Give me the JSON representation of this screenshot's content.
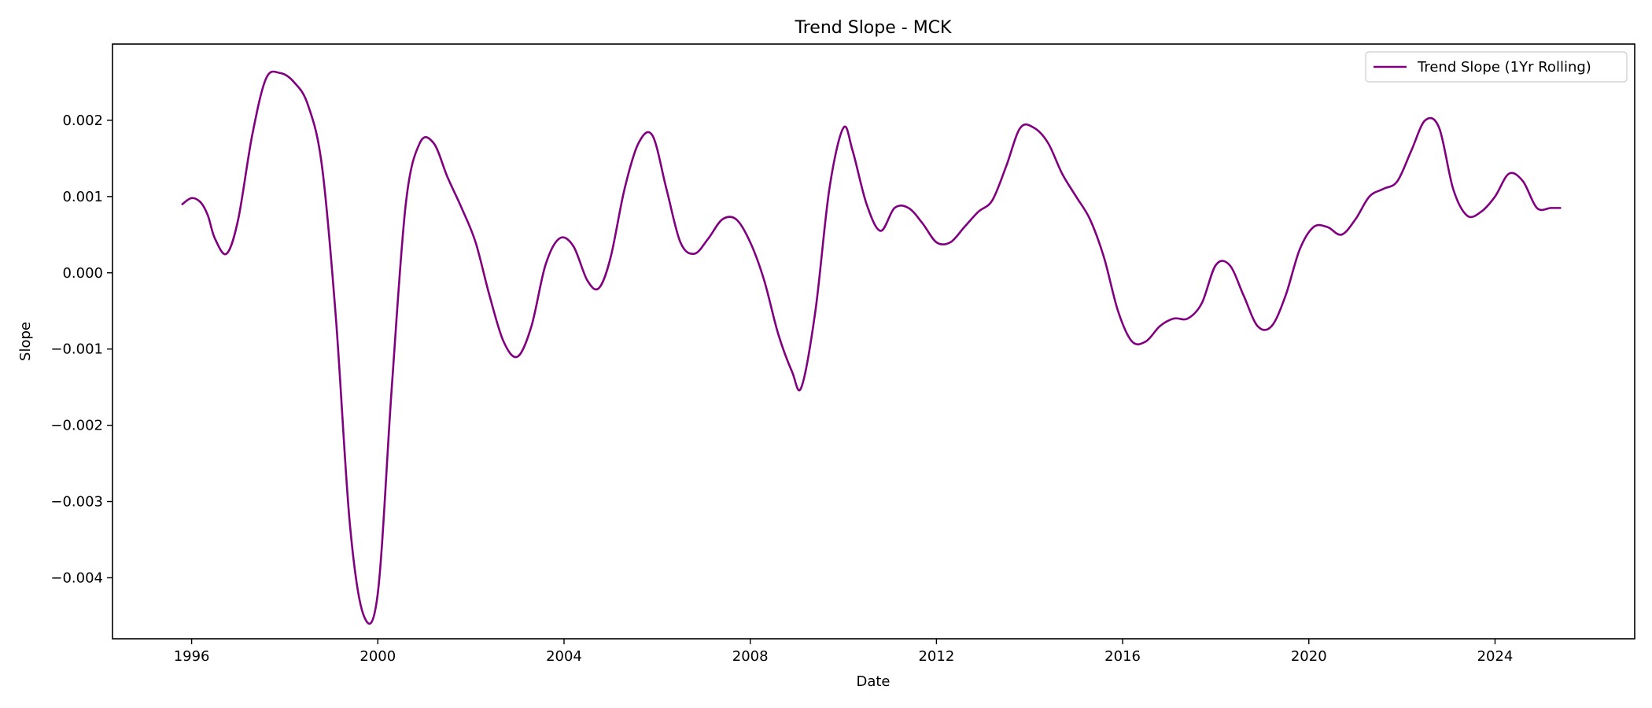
{
  "chart_data": {
    "type": "line",
    "title": "Trend Slope - MCK",
    "xlabel": "Date",
    "ylabel": "Slope",
    "xlim": [
      1994.3,
      2027.0
    ],
    "ylim": [
      -0.0048,
      0.003
    ],
    "x_ticks": [
      1996,
      2000,
      2004,
      2008,
      2012,
      2016,
      2020,
      2024
    ],
    "x_tick_labels": [
      "1996",
      "2000",
      "2004",
      "2008",
      "2012",
      "2016",
      "2020",
      "2024"
    ],
    "y_ticks": [
      -0.004,
      -0.003,
      -0.002,
      -0.001,
      0.0,
      0.001,
      0.002
    ],
    "y_tick_labels": [
      "−0.004",
      "−0.003",
      "−0.002",
      "−0.001",
      "0.000",
      "0.001",
      "0.002"
    ],
    "grid": false,
    "legend": {
      "position": "top-right",
      "entries": [
        "Trend Slope (1Yr Rolling)"
      ]
    },
    "series": [
      {
        "name": "Trend Slope (1Yr Rolling)",
        "color": "#800080",
        "x": [
          1995.8,
          1996.0,
          1996.2,
          1996.35,
          1996.5,
          1996.75,
          1997.0,
          1997.3,
          1997.6,
          1997.9,
          1998.2,
          1998.5,
          1998.8,
          1999.1,
          1999.4,
          1999.7,
          2000.0,
          2000.3,
          2000.6,
          2000.9,
          2001.2,
          2001.5,
          2001.8,
          2002.1,
          2002.4,
          2002.7,
          2003.0,
          2003.3,
          2003.6,
          2003.9,
          2004.2,
          2004.5,
          2004.75,
          2005.0,
          2005.3,
          2005.6,
          2005.9,
          2006.2,
          2006.5,
          2006.8,
          2007.1,
          2007.4,
          2007.7,
          2008.0,
          2008.3,
          2008.6,
          2008.9,
          2009.1,
          2009.4,
          2009.7,
          2010.0,
          2010.2,
          2010.5,
          2010.8,
          2011.1,
          2011.4,
          2011.7,
          2012.0,
          2012.3,
          2012.6,
          2012.9,
          2013.2,
          2013.5,
          2013.8,
          2014.1,
          2014.4,
          2014.7,
          2015.0,
          2015.3,
          2015.6,
          2015.9,
          2016.2,
          2016.5,
          2016.8,
          2017.1,
          2017.4,
          2017.7,
          2018.0,
          2018.3,
          2018.6,
          2018.9,
          2019.2,
          2019.5,
          2019.8,
          2020.1,
          2020.4,
          2020.7,
          2021.0,
          2021.3,
          2021.6,
          2021.9,
          2022.2,
          2022.5,
          2022.8,
          2023.1,
          2023.4,
          2023.7,
          2024.0,
          2024.3,
          2024.6,
          2024.9,
          2025.2,
          2025.4
        ],
        "y": [
          0.0009,
          0.00098,
          0.00092,
          0.00075,
          0.00045,
          0.00025,
          0.0007,
          0.0018,
          0.00255,
          0.00262,
          0.0025,
          0.0022,
          0.0014,
          -0.0006,
          -0.0033,
          -0.0045,
          -0.0042,
          -0.0015,
          0.0009,
          0.0017,
          0.0017,
          0.00125,
          0.00085,
          0.0004,
          -0.0003,
          -0.0009,
          -0.0011,
          -0.0007,
          0.0001,
          0.00045,
          0.00035,
          -0.0001,
          -0.0002,
          0.0002,
          0.0011,
          0.0017,
          0.0018,
          0.0011,
          0.0004,
          0.00025,
          0.00045,
          0.0007,
          0.0007,
          0.0004,
          -0.0001,
          -0.0008,
          -0.0013,
          -0.0015,
          -0.0005,
          0.0011,
          0.0019,
          0.0016,
          0.0009,
          0.00055,
          0.00085,
          0.00085,
          0.00065,
          0.0004,
          0.0004,
          0.0006,
          0.0008,
          0.00095,
          0.0014,
          0.0019,
          0.0019,
          0.0017,
          0.0013,
          0.001,
          0.0007,
          0.0002,
          -0.0005,
          -0.0009,
          -0.0009,
          -0.0007,
          -0.0006,
          -0.0006,
          -0.0004,
          0.0001,
          0.0001,
          -0.0003,
          -0.0007,
          -0.0007,
          -0.0003,
          0.0003,
          0.0006,
          0.0006,
          0.0005,
          0.0007,
          0.001,
          0.0011,
          0.0012,
          0.0016,
          0.002,
          0.0019,
          0.0011,
          0.00075,
          0.0008,
          0.001,
          0.0013,
          0.0012,
          0.00085,
          0.00085,
          0.00085
        ]
      }
    ]
  }
}
